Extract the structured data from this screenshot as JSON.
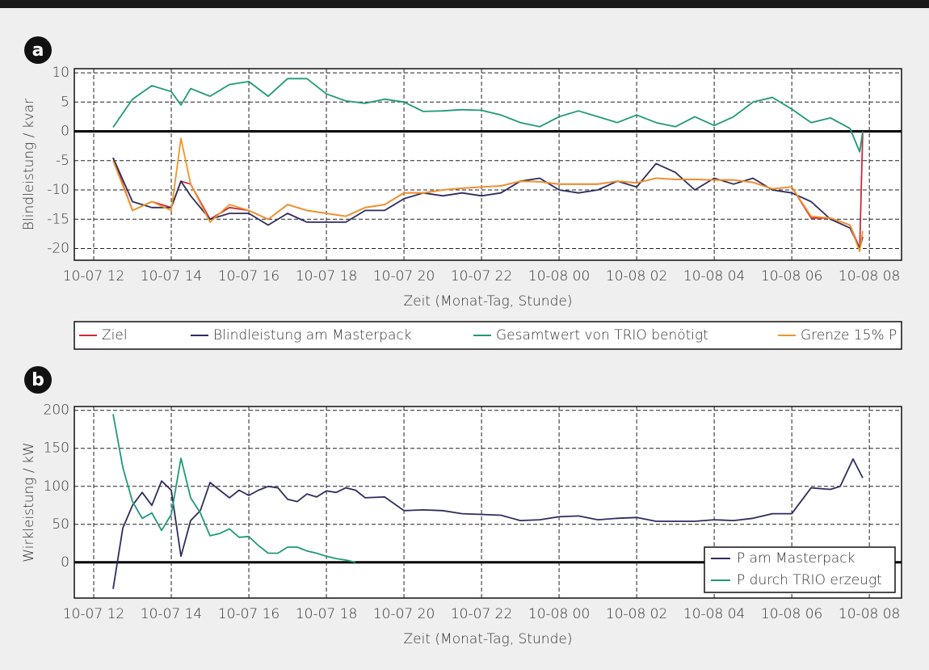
{
  "chart_data": [
    {
      "type": "line",
      "panel_label": "a",
      "y_label": "Blindleistung / kvar",
      "x_label": "Zeit (Monat-Tag, Stunde)",
      "x": [
        12.5,
        13,
        13.5,
        14,
        14.25,
        14.5,
        15,
        15.5,
        16,
        16.5,
        17,
        17.5,
        18,
        18.5,
        19,
        19.5,
        20,
        20.5,
        21,
        21.5,
        22,
        22.5,
        23,
        23.5,
        24,
        24.5,
        25,
        25.5,
        26,
        26.5,
        27,
        27.5,
        28,
        28.5,
        29,
        29.5,
        30,
        30.5,
        31,
        31.5,
        31.75,
        31.83
      ],
      "xlim": [
        11.5,
        32.83
      ],
      "xticks": [
        {
          "value": 12,
          "label": "10-07 12"
        },
        {
          "value": 14,
          "label": "10-07 14"
        },
        {
          "value": 16,
          "label": "10-07 16"
        },
        {
          "value": 18,
          "label": "10-07 18"
        },
        {
          "value": 20,
          "label": "10-07 20"
        },
        {
          "value": 22,
          "label": "10-07 22"
        },
        {
          "value": 24,
          "label": "10-08 00"
        },
        {
          "value": 26,
          "label": "10-08 02"
        },
        {
          "value": 28,
          "label": "10-08 04"
        },
        {
          "value": 30,
          "label": "10-08 06"
        },
        {
          "value": 32,
          "label": "10-08 08"
        }
      ],
      "ylim": [
        -22,
        10.7
      ],
      "yticks": [
        10,
        5,
        0,
        -5,
        -10,
        -15,
        -20
      ],
      "grid": true,
      "legend": "bottom",
      "series": [
        {
          "name": "Ziel",
          "color": "#d2283c",
          "values": [
            -4.5,
            -13.5,
            -12,
            -13,
            -8.5,
            -9,
            -15,
            -13,
            -13.5,
            -15,
            -12.5,
            -13.5,
            -14,
            -14.5,
            -13,
            -12.5,
            -10.5,
            -10.5,
            -10,
            -9.7,
            -9.5,
            -9.3,
            -8.5,
            -8.6,
            -9,
            -9,
            -9,
            -8.5,
            -8.8,
            -8,
            -8.2,
            -8.2,
            -8.3,
            -8.3,
            -8.7,
            -9.8,
            -9.5,
            -14.8,
            -14.8,
            -16,
            -20,
            0
          ]
        },
        {
          "name": "Blindleistung am Masterpack",
          "color": "#2e2d5e",
          "values": [
            -4.5,
            -12,
            -13,
            -13,
            -8.5,
            -11,
            -15,
            -14,
            -14,
            -16,
            -14,
            -15.5,
            -15.5,
            -15.5,
            -13.5,
            -13.5,
            -11.5,
            -10.5,
            -11,
            -10.5,
            -11,
            -10.5,
            -8.5,
            -8,
            -10,
            -10.5,
            -10,
            -8.5,
            -9.5,
            -5.5,
            -7,
            -10,
            -8,
            -9,
            -8,
            -10,
            -10.5,
            -12,
            -15,
            -16.5,
            -20,
            -18
          ]
        },
        {
          "name": "Gesamtwert von TRIO benötigt",
          "color": "#1f9a78",
          "values": [
            0.7,
            5.5,
            7.8,
            6.8,
            4.5,
            7.3,
            6,
            8,
            8.5,
            6,
            9,
            9,
            6.4,
            5.2,
            4.8,
            5.5,
            5,
            3.4,
            3.5,
            3.7,
            3.6,
            2.8,
            1.5,
            0.8,
            2.5,
            3.5,
            2.5,
            1.5,
            2.8,
            1.5,
            0.8,
            2.5,
            1,
            2.5,
            5,
            5.8,
            3.8,
            1.5,
            2.3,
            0.5,
            -3.5,
            0
          ]
        },
        {
          "name": "Grenze 15% P",
          "color": "#f0962a",
          "values": [
            -5,
            -13.5,
            -12,
            -13.5,
            -1.2,
            -9,
            -15.5,
            -12.5,
            -13.5,
            -15,
            -12.5,
            -13.5,
            -14,
            -14.5,
            -13,
            -12.5,
            -10.5,
            -10.5,
            -10,
            -9.7,
            -9.5,
            -9.3,
            -8.5,
            -8.6,
            -9,
            -9,
            -9,
            -8.5,
            -8.8,
            -8,
            -8.2,
            -8.2,
            -8.3,
            -8.3,
            -8.7,
            -9.8,
            -9.5,
            -14.5,
            -14.8,
            -16,
            -20.5,
            -17
          ]
        }
      ]
    },
    {
      "type": "line",
      "panel_label": "b",
      "y_label": "Wirkleistung / kW",
      "x_label": "Zeit (Monat-Tag, Stunde)",
      "x": [
        12.5,
        12.75,
        13,
        13.25,
        13.5,
        13.75,
        14,
        14.25,
        14.5,
        14.75,
        15,
        15.25,
        15.5,
        15.75,
        16,
        16.25,
        16.5,
        16.75,
        17,
        17.25,
        17.5,
        17.75,
        18,
        18.25,
        18.5,
        18.75,
        19,
        19.5,
        20,
        20.5,
        21,
        21.5,
        22,
        22.5,
        23,
        23.5,
        24,
        24.5,
        25,
        25.5,
        26,
        26.5,
        27,
        27.5,
        28,
        28.5,
        29,
        29.5,
        30,
        30.5,
        30.75,
        31,
        31.25,
        31.58,
        31.83
      ],
      "xlim": [
        11.5,
        32.83
      ],
      "xticks": [
        {
          "value": 12,
          "label": "10-07 12"
        },
        {
          "value": 14,
          "label": "10-07 14"
        },
        {
          "value": 16,
          "label": "10-07 16"
        },
        {
          "value": 18,
          "label": "10-07 18"
        },
        {
          "value": 20,
          "label": "10-07 20"
        },
        {
          "value": 22,
          "label": "10-07 22"
        },
        {
          "value": 24,
          "label": "10-08 00"
        },
        {
          "value": 26,
          "label": "10-08 02"
        },
        {
          "value": 28,
          "label": "10-08 04"
        },
        {
          "value": 30,
          "label": "10-08 06"
        },
        {
          "value": 32,
          "label": "10-08 08"
        }
      ],
      "ylim": [
        -47,
        205
      ],
      "yticks": [
        200,
        150,
        100,
        50,
        0
      ],
      "grid": true,
      "legend": "lower right",
      "series": [
        {
          "name": "P am Masterpack",
          "color": "#2e2d5e",
          "values": [
            -35,
            45,
            75,
            92,
            75,
            107,
            95,
            8,
            55,
            68,
            105,
            95,
            85,
            95,
            88,
            95,
            100,
            98,
            83,
            80,
            90,
            86,
            94,
            92,
            98,
            95,
            85,
            86,
            68,
            69,
            68,
            64,
            63,
            62,
            55,
            56,
            60,
            61,
            56,
            58,
            59,
            54,
            54,
            54,
            56,
            55,
            58,
            64,
            64,
            98,
            97,
            96,
            100,
            136,
            111
          ]
        },
        {
          "name": "P durch TRIO erzeugt",
          "color": "#1f9a78",
          "values": [
            195,
            125,
            80,
            58,
            65,
            42,
            63,
            137,
            85,
            65,
            35,
            38,
            44,
            33,
            34,
            22,
            12,
            12,
            20,
            20,
            15,
            12,
            8,
            5,
            3,
            0,
            null,
            null,
            null,
            null,
            null,
            null,
            null,
            null,
            null,
            null,
            null,
            null,
            null,
            null,
            null,
            null,
            null,
            null,
            null,
            null,
            null,
            null,
            null,
            null,
            null,
            null,
            null,
            null,
            null
          ]
        }
      ]
    }
  ]
}
